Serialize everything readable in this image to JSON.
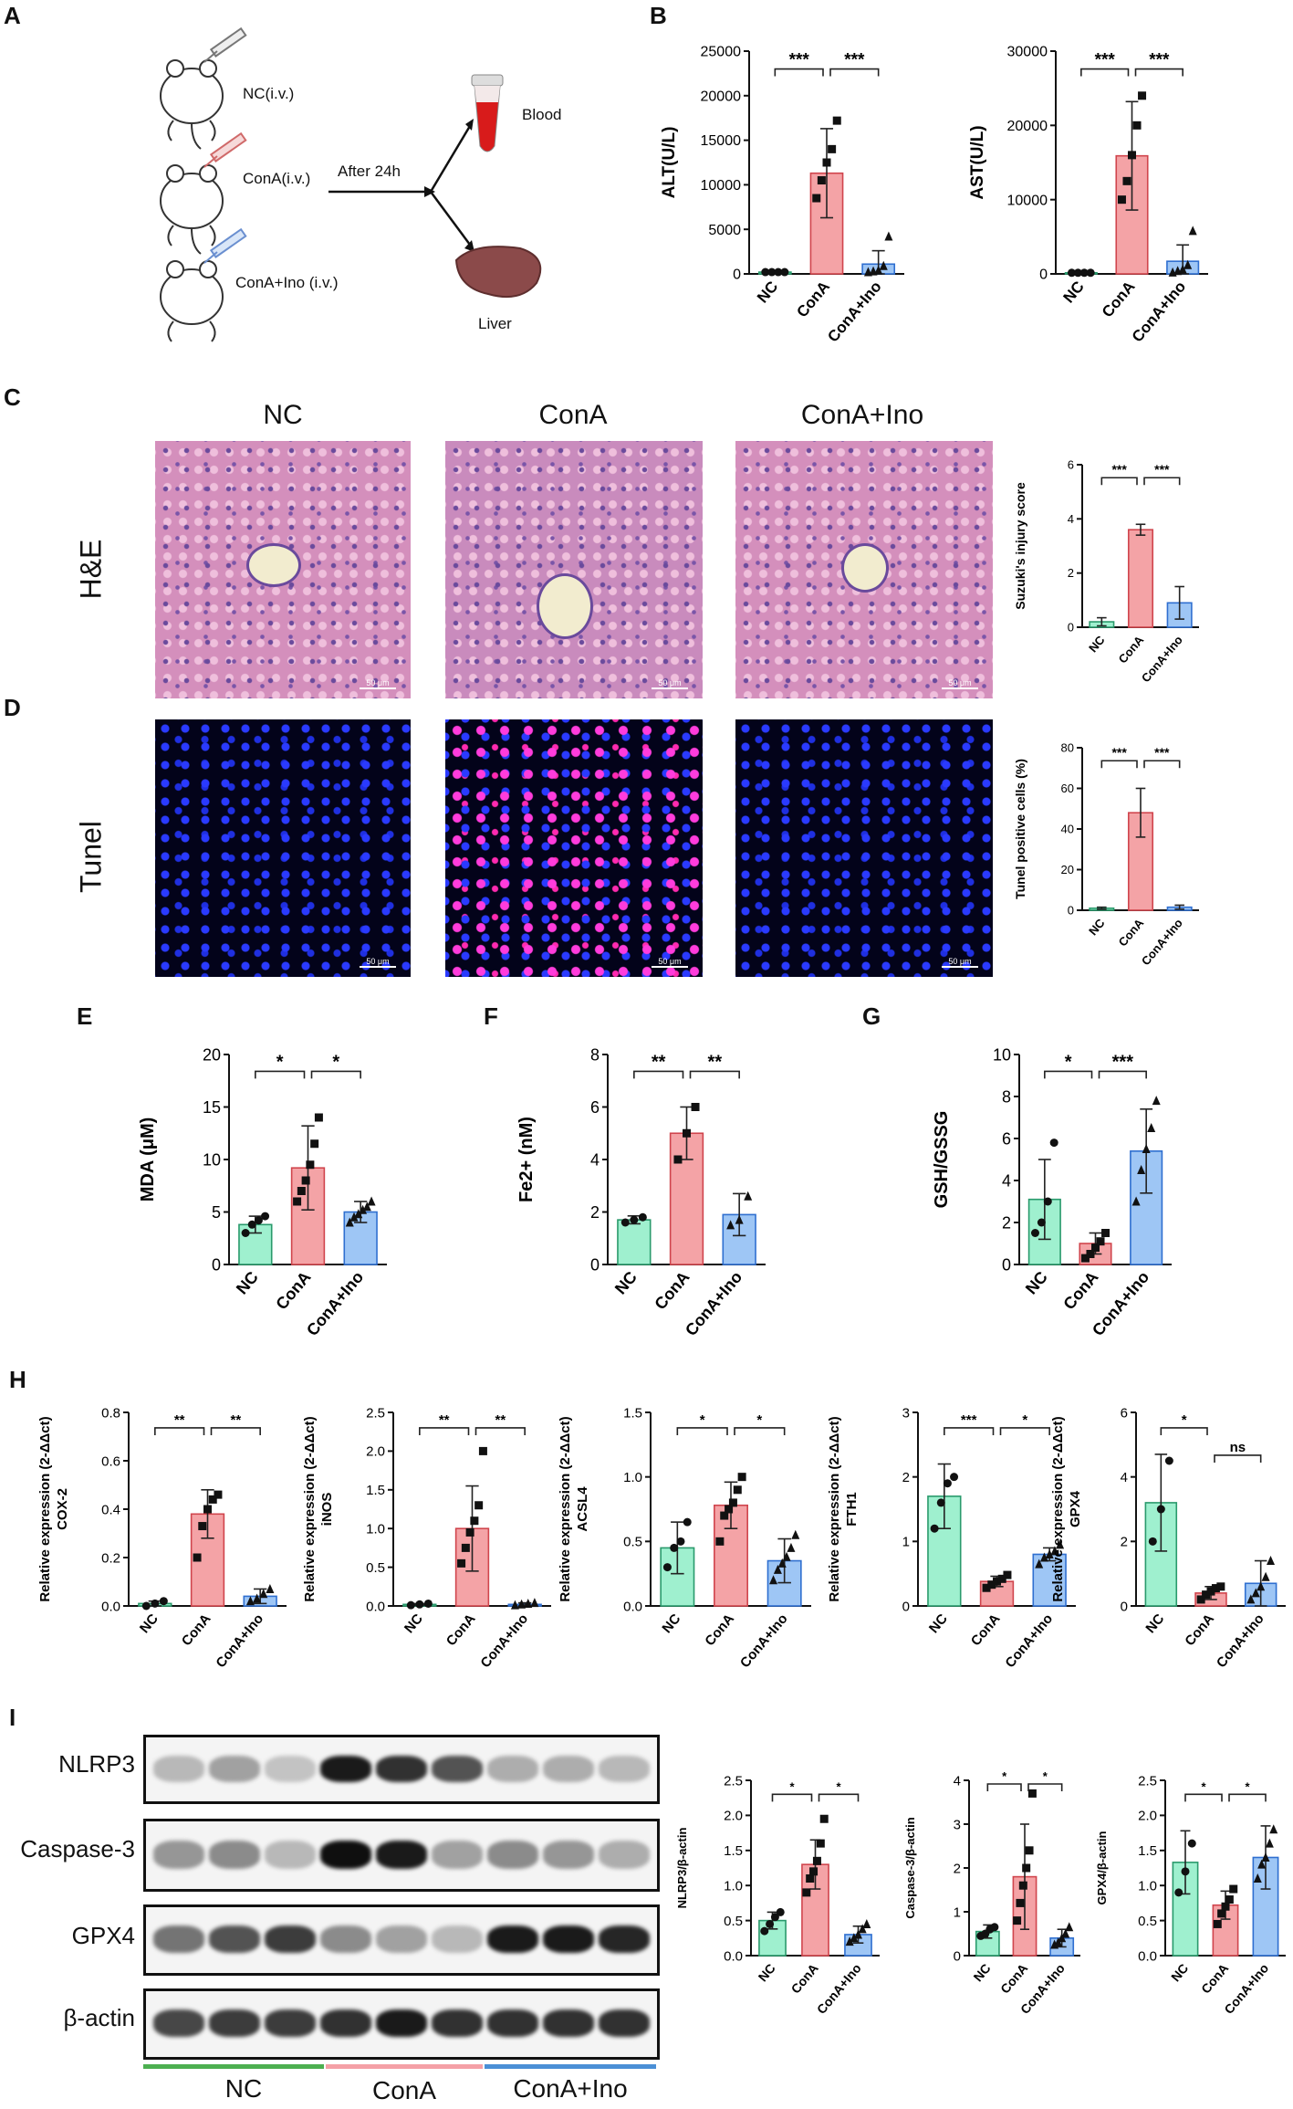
{
  "panel_labels": {
    "A": "A",
    "B": "B",
    "C": "C",
    "D": "D",
    "E": "E",
    "F": "F",
    "G": "G",
    "H": "H",
    "I": "I"
  },
  "schematic": {
    "groups": [
      "NC(i.v.)",
      "ConA(i.v.)",
      "ConA+Ino (i.v.)"
    ],
    "arrow_label": "After 24h",
    "outputs": [
      "Blood",
      "Liver"
    ]
  },
  "histology": {
    "columns": [
      "NC",
      "ConA",
      "ConA+Ino"
    ],
    "rows": [
      "H&E",
      "Tunel"
    ],
    "scale_text": "50 μm"
  },
  "colors": {
    "NC": "#9ff0cf",
    "ConA": "#f4a3a6",
    "ConA+Ino": "#9ec6f5",
    "NC_line": "#2a9a6c",
    "ConA_line": "#d0454d",
    "Ino_line": "#2f6fd0",
    "bar_NC": "#3fa84a",
    "bar_ConA": "#f0a3a8",
    "bar_Ino": "#4a8fd6"
  },
  "blot": {
    "proteins": [
      "NLRP3",
      "Caspase-3",
      "GPX4",
      "β-actin"
    ],
    "groups": [
      "NC",
      "ConA",
      "ConA+Ino"
    ]
  },
  "chart_data": [
    {
      "id": "B1",
      "type": "bar",
      "categories": [
        "NC",
        "ConA",
        "ConA+Ino"
      ],
      "values": [
        200,
        11300,
        1100
      ],
      "errors": [
        100,
        5000,
        1500
      ],
      "ylabel": "ALT(U/L)",
      "ylim": [
        0,
        25000
      ],
      "yticks": [
        0,
        5000,
        10000,
        15000,
        20000,
        25000
      ],
      "points": [
        [
          200,
          200,
          200,
          200
        ],
        [
          8500,
          10500,
          12500,
          14000,
          17200
        ],
        [
          200,
          300,
          400,
          900,
          4200
        ]
      ],
      "sig": [
        {
          "from": 0,
          "to": 1,
          "label": "***"
        },
        {
          "from": 1,
          "to": 2,
          "label": "***"
        }
      ]
    },
    {
      "id": "B2",
      "type": "bar",
      "categories": [
        "NC",
        "ConA",
        "ConA+Ino"
      ],
      "values": [
        150,
        15900,
        1700
      ],
      "errors": [
        100,
        7300,
        2200
      ],
      "ylabel": "AST(U/L)",
      "ylim": [
        0,
        30000
      ],
      "yticks": [
        0,
        10000,
        20000,
        30000
      ],
      "points": [
        [
          150,
          150,
          150,
          150
        ],
        [
          10000,
          12500,
          16000,
          20000,
          24000
        ],
        [
          200,
          400,
          600,
          1200,
          5800
        ]
      ],
      "sig": [
        {
          "from": 0,
          "to": 1,
          "label": "***"
        },
        {
          "from": 1,
          "to": 2,
          "label": "***"
        }
      ]
    },
    {
      "id": "C",
      "type": "bar",
      "categories": [
        "NC",
        "ConA",
        "ConA+Ino"
      ],
      "values": [
        0.2,
        3.6,
        0.9
      ],
      "errors": [
        0.15,
        0.2,
        0.6
      ],
      "ylabel": "Suzuki's injury score",
      "ylim": [
        0,
        6
      ],
      "yticks": [
        0,
        2,
        4,
        6
      ],
      "points": [],
      "sig": [
        {
          "from": 0,
          "to": 1,
          "label": "***"
        },
        {
          "from": 1,
          "to": 2,
          "label": "***"
        }
      ]
    },
    {
      "id": "D",
      "type": "bar",
      "categories": [
        "NC",
        "ConA",
        "ConA+Ino"
      ],
      "values": [
        1,
        48,
        1.5
      ],
      "errors": [
        0.5,
        12,
        1
      ],
      "ylabel": "Tunel positive cells (%)",
      "ylim": [
        0,
        80
      ],
      "yticks": [
        0,
        20,
        40,
        60,
        80
      ],
      "points": [],
      "sig": [
        {
          "from": 0,
          "to": 1,
          "label": "***"
        },
        {
          "from": 1,
          "to": 2,
          "label": "***"
        }
      ]
    },
    {
      "id": "E",
      "type": "bar",
      "categories": [
        "NC",
        "ConA",
        "ConA+Ino"
      ],
      "values": [
        3.8,
        9.2,
        5.0
      ],
      "errors": [
        0.8,
        4.0,
        1.0
      ],
      "ylabel": "MDA (μM)",
      "ylim": [
        0,
        20
      ],
      "yticks": [
        0,
        5,
        10,
        15,
        20
      ],
      "points": [
        [
          3.0,
          3.8,
          4.2,
          4.6
        ],
        [
          6.0,
          7.0,
          8.0,
          9.5,
          11.5,
          14.0
        ],
        [
          4.0,
          4.5,
          4.8,
          5.2,
          5.5,
          6.0
        ]
      ],
      "sig": [
        {
          "from": 0,
          "to": 1,
          "label": "*"
        },
        {
          "from": 1,
          "to": 2,
          "label": "*"
        }
      ]
    },
    {
      "id": "F",
      "type": "bar",
      "categories": [
        "NC",
        "ConA",
        "ConA+Ino"
      ],
      "values": [
        1.7,
        5.0,
        1.9
      ],
      "errors": [
        0.15,
        1.0,
        0.8
      ],
      "ylabel": "Fe2+ (nM)",
      "ylim": [
        0,
        8
      ],
      "yticks": [
        0,
        2,
        4,
        6,
        8
      ],
      "points": [
        [
          1.6,
          1.7,
          1.8
        ],
        [
          4.0,
          5.0,
          6.0
        ],
        [
          1.5,
          1.7,
          2.6
        ]
      ],
      "sig": [
        {
          "from": 0,
          "to": 1,
          "label": "**"
        },
        {
          "from": 1,
          "to": 2,
          "label": "**"
        }
      ]
    },
    {
      "id": "G",
      "type": "bar",
      "categories": [
        "NC",
        "ConA",
        "ConA+Ino"
      ],
      "values": [
        3.1,
        1.0,
        5.4
      ],
      "errors": [
        1.9,
        0.5,
        2.0
      ],
      "ylabel": "GSH/GSSG",
      "ylim": [
        0,
        10
      ],
      "yticks": [
        0,
        2,
        4,
        6,
        8,
        10
      ],
      "points": [
        [
          1.5,
          2.0,
          3.0,
          5.8
        ],
        [
          0.3,
          0.5,
          0.8,
          1.1,
          1.5
        ],
        [
          3.0,
          4.5,
          5.5,
          6.5,
          7.8
        ]
      ],
      "sig": [
        {
          "from": 0,
          "to": 1,
          "label": "*"
        },
        {
          "from": 1,
          "to": 2,
          "label": "***"
        }
      ]
    },
    {
      "id": "H1",
      "type": "bar",
      "categories": [
        "NC",
        "ConA",
        "ConA+Ino"
      ],
      "values": [
        0.01,
        0.38,
        0.04
      ],
      "errors": [
        0.01,
        0.1,
        0.03
      ],
      "ylabel": "Relative expression (2-ΔΔct)",
      "series_label": "COX-2",
      "ylim": [
        0,
        0.8
      ],
      "yticks": [
        0.0,
        0.2,
        0.4,
        0.6,
        0.8
      ],
      "points": [
        [
          0.0,
          0.01,
          0.02
        ],
        [
          0.2,
          0.33,
          0.4,
          0.44,
          0.46
        ],
        [
          0.02,
          0.03,
          0.05,
          0.07
        ]
      ],
      "sig": [
        {
          "from": 0,
          "to": 1,
          "label": "**"
        },
        {
          "from": 1,
          "to": 2,
          "label": "**"
        }
      ]
    },
    {
      "id": "H2",
      "type": "bar",
      "categories": [
        "NC",
        "ConA",
        "ConA+Ino"
      ],
      "values": [
        0.02,
        1.0,
        0.02
      ],
      "errors": [
        0.01,
        0.55,
        0.02
      ],
      "ylabel": "Relative expression (2-ΔΔct)",
      "series_label": "iNOS",
      "ylim": [
        0,
        2.5
      ],
      "yticks": [
        0.0,
        0.5,
        1.0,
        1.5,
        2.0,
        2.5
      ],
      "points": [
        [
          0.01,
          0.02,
          0.03
        ],
        [
          0.55,
          0.75,
          0.95,
          1.1,
          1.3,
          2.0
        ],
        [
          0.01,
          0.02,
          0.03,
          0.04
        ]
      ],
      "sig": [
        {
          "from": 0,
          "to": 1,
          "label": "**"
        },
        {
          "from": 1,
          "to": 2,
          "label": "**"
        }
      ]
    },
    {
      "id": "H3",
      "type": "bar",
      "categories": [
        "NC",
        "ConA",
        "ConA+Ino"
      ],
      "values": [
        0.45,
        0.78,
        0.35
      ],
      "errors": [
        0.2,
        0.18,
        0.17
      ],
      "ylabel": "Relative expression (2-ΔΔct)",
      "series_label": "ACSL4",
      "ylim": [
        0,
        1.5
      ],
      "yticks": [
        0.0,
        0.5,
        1.0,
        1.5
      ],
      "points": [
        [
          0.3,
          0.45,
          0.5,
          0.65
        ],
        [
          0.5,
          0.7,
          0.75,
          0.8,
          0.9,
          1.0
        ],
        [
          0.2,
          0.28,
          0.33,
          0.38,
          0.45,
          0.55
        ]
      ],
      "sig": [
        {
          "from": 0,
          "to": 1,
          "label": "*"
        },
        {
          "from": 1,
          "to": 2,
          "label": "*"
        }
      ]
    },
    {
      "id": "H4",
      "type": "bar",
      "categories": [
        "NC",
        "ConA",
        "ConA+Ino"
      ],
      "values": [
        1.7,
        0.38,
        0.8
      ],
      "errors": [
        0.5,
        0.08,
        0.1
      ],
      "ylabel": "Relative expression (2-ΔΔct)",
      "series_label": "FTH1",
      "ylim": [
        0,
        3
      ],
      "yticks": [
        0,
        1,
        2,
        3
      ],
      "points": [
        [
          1.2,
          1.6,
          1.9,
          2.0
        ],
        [
          0.28,
          0.33,
          0.38,
          0.42,
          0.48
        ],
        [
          0.65,
          0.75,
          0.8,
          0.85,
          0.95
        ]
      ],
      "sig": [
        {
          "from": 0,
          "to": 1,
          "label": "***"
        },
        {
          "from": 1,
          "to": 2,
          "label": "*"
        }
      ]
    },
    {
      "id": "H5",
      "type": "bar",
      "categories": [
        "NC",
        "ConA",
        "ConA+Ino"
      ],
      "values": [
        3.2,
        0.4,
        0.7
      ],
      "errors": [
        1.5,
        0.2,
        0.7
      ],
      "ylabel": "Relative expression (2-ΔΔct)",
      "series_label": "GPX4",
      "ylim": [
        0,
        6
      ],
      "yticks": [
        0,
        2,
        4,
        6
      ],
      "points": [
        [
          2.0,
          3.0,
          4.5
        ],
        [
          0.2,
          0.35,
          0.45,
          0.55,
          0.6
        ],
        [
          0.2,
          0.4,
          0.6,
          0.9,
          1.4
        ]
      ],
      "sig": [
        {
          "from": 0,
          "to": 1,
          "label": "*"
        },
        {
          "from": 1,
          "to": 2,
          "label": "ns"
        }
      ]
    },
    {
      "id": "I1",
      "type": "bar",
      "categories": [
        "NC",
        "ConA",
        "ConA+Ino"
      ],
      "values": [
        0.5,
        1.3,
        0.3
      ],
      "errors": [
        0.12,
        0.35,
        0.12
      ],
      "ylabel": "NLRP3/β-actin",
      "ylim": [
        0,
        2.5
      ],
      "yticks": [
        0.0,
        0.5,
        1.0,
        1.5,
        2.0,
        2.5
      ],
      "points": [
        [
          0.35,
          0.45,
          0.55,
          0.62
        ],
        [
          0.9,
          1.1,
          1.2,
          1.35,
          1.6,
          1.95
        ],
        [
          0.2,
          0.25,
          0.3,
          0.38,
          0.45
        ]
      ],
      "sig": [
        {
          "from": 0,
          "to": 1,
          "label": "*"
        },
        {
          "from": 1,
          "to": 2,
          "label": "*"
        }
      ]
    },
    {
      "id": "I2",
      "type": "bar",
      "categories": [
        "NC",
        "ConA",
        "ConA+Ino"
      ],
      "values": [
        0.55,
        1.8,
        0.4
      ],
      "errors": [
        0.15,
        1.2,
        0.2
      ],
      "ylabel": "Caspase-3/β-actin",
      "ylim": [
        0,
        4
      ],
      "yticks": [
        0,
        1,
        2,
        3,
        4
      ],
      "points": [
        [
          0.45,
          0.5,
          0.6,
          0.65
        ],
        [
          0.8,
          1.2,
          1.6,
          2.0,
          2.4,
          3.7
        ],
        [
          0.25,
          0.3,
          0.4,
          0.5,
          0.65
        ]
      ],
      "sig": [
        {
          "from": 0,
          "to": 1,
          "label": "*"
        },
        {
          "from": 1,
          "to": 2,
          "label": "*"
        }
      ]
    },
    {
      "id": "I3",
      "type": "bar",
      "categories": [
        "NC",
        "ConA",
        "ConA+Ino"
      ],
      "values": [
        1.33,
        0.72,
        1.4
      ],
      "errors": [
        0.45,
        0.2,
        0.45
      ],
      "ylabel": "GPX4/β-actin",
      "ylim": [
        0,
        2.5
      ],
      "yticks": [
        0.0,
        0.5,
        1.0,
        1.5,
        2.0,
        2.5
      ],
      "points": [
        [
          0.9,
          1.2,
          1.6
        ],
        [
          0.45,
          0.6,
          0.7,
          0.8,
          0.95
        ],
        [
          1.1,
          1.3,
          1.4,
          1.6,
          1.8
        ]
      ],
      "sig": [
        {
          "from": 0,
          "to": 1,
          "label": "*"
        },
        {
          "from": 1,
          "to": 2,
          "label": "*"
        }
      ]
    }
  ]
}
